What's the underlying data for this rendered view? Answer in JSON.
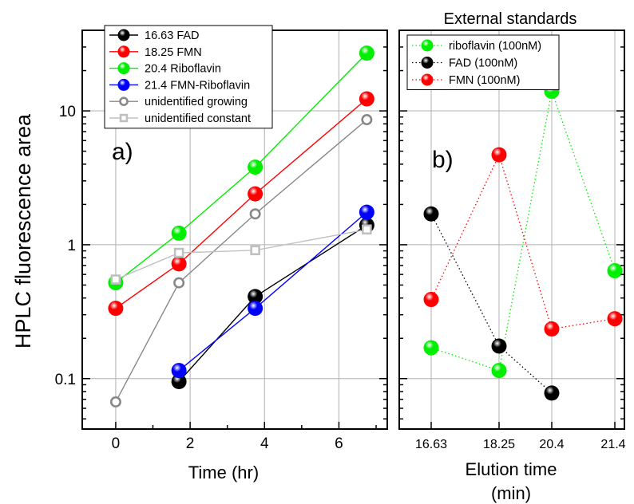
{
  "ylabel": "HPLC fluorescence area",
  "chart_data": [
    {
      "type": "line",
      "panel_label": "a)",
      "xlabel": "Time (hr)",
      "ylabel": "HPLC fluorescence area",
      "yscale": "log",
      "xlim": [
        -0.9,
        7.3
      ],
      "ylim": [
        0.042,
        40
      ],
      "xticks": [
        "0",
        "2",
        "4",
        "6"
      ],
      "yticks": [
        "0.1",
        "1",
        "10"
      ],
      "grid": true,
      "legend_position": "top-left",
      "series": [
        {
          "name": "16.63 FAD",
          "x": [
            1.7,
            3.75,
            6.75
          ],
          "values": [
            0.095,
            0.41,
            1.4
          ],
          "color": "#000000",
          "marker": "sphere"
        },
        {
          "name": "18.25 FMN",
          "x": [
            0,
            1.7,
            3.75,
            6.75
          ],
          "values": [
            0.335,
            0.72,
            2.4,
            12.3
          ],
          "color": "#ff0000",
          "marker": "sphere"
        },
        {
          "name": "20.4 Riboflavin",
          "x": [
            0,
            1.7,
            3.75,
            6.75
          ],
          "values": [
            0.52,
            1.22,
            3.8,
            27
          ],
          "color": "#00ee00",
          "marker": "sphere"
        },
        {
          "name": "21.4 FMN-Riboflavin",
          "x": [
            1.7,
            3.75,
            6.75
          ],
          "values": [
            0.115,
            0.335,
            1.75
          ],
          "color": "#0000ff",
          "marker": "sphere"
        },
        {
          "name": "unidentified growing",
          "x": [
            0,
            1.7,
            3.75,
            6.75
          ],
          "values": [
            0.067,
            0.52,
            1.7,
            8.6
          ],
          "color": "#888888",
          "marker": "open-circle"
        },
        {
          "name": "unidentified constant",
          "x": [
            0,
            1.7,
            3.75,
            6.75
          ],
          "values": [
            0.55,
            0.87,
            0.91,
            1.3
          ],
          "color": "#c0c0c0",
          "marker": "open-square"
        }
      ]
    },
    {
      "type": "line",
      "panel_label": "b)",
      "title": "External standards",
      "xlabel": "Elution time\n(min)",
      "yscale": "log",
      "ylim": [
        0.042,
        40
      ],
      "categories": [
        "16.63",
        "18.25",
        "20.4",
        "21.4"
      ],
      "grid": true,
      "legend_position": "top-left",
      "series": [
        {
          "name": "riboflavin (100nM)",
          "values": [
            0.17,
            0.115,
            14,
            0.64
          ],
          "color": "#00ee00",
          "marker": "sphere",
          "line": "dotted"
        },
        {
          "name": "FAD (100nM)",
          "values": [
            1.7,
            0.175,
            0.078,
            null
          ],
          "color": "#000000",
          "marker": "sphere",
          "line": "dotted"
        },
        {
          "name": "FMN (100nM)",
          "values": [
            0.39,
            4.7,
            0.235,
            0.28
          ],
          "color": "#ff0000",
          "marker": "sphere",
          "line": "dotted"
        }
      ]
    }
  ]
}
